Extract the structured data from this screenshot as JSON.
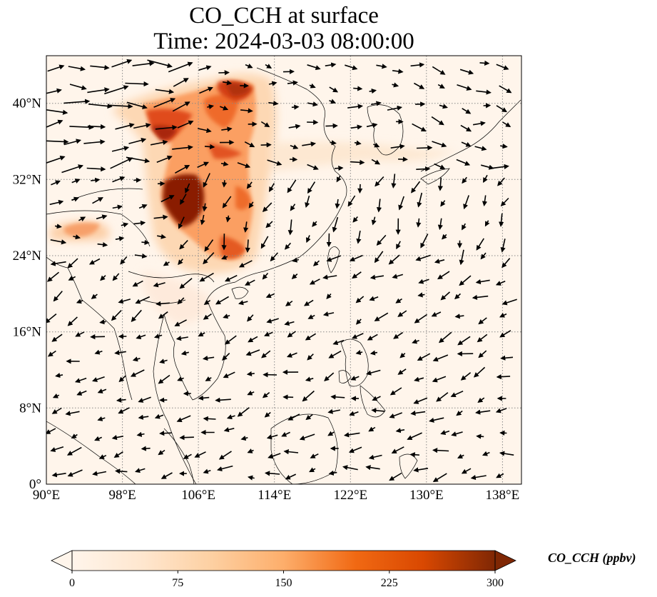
{
  "title": {
    "line1": "CO_CCH at surface",
    "line2": "Time: 2024-03-03 08:00:00"
  },
  "map": {
    "lon_range": [
      90,
      140
    ],
    "lat_range": [
      0,
      45
    ],
    "lon_ticks": [
      "90°E",
      "98°E",
      "106°E",
      "114°E",
      "122°E",
      "130°E",
      "138°E"
    ],
    "lat_ticks": [
      "0°",
      "8°N",
      "16°N",
      "24°N",
      "32°N",
      "40°N"
    ],
    "gridlines": true,
    "background_color": "#fff5eb",
    "variable": "CO_CCH",
    "overlay": "surface wind vectors"
  },
  "colorbar": {
    "label": "CO_CCH (ppbv)",
    "min": 0,
    "max": 300,
    "ticks": [
      "0",
      "75",
      "150",
      "225",
      "300"
    ],
    "extend": "both",
    "colormap": [
      "#fff5eb",
      "#fdd49e",
      "#fdae6b",
      "#f16913",
      "#d94801",
      "#a63603",
      "#7f2704"
    ]
  }
}
